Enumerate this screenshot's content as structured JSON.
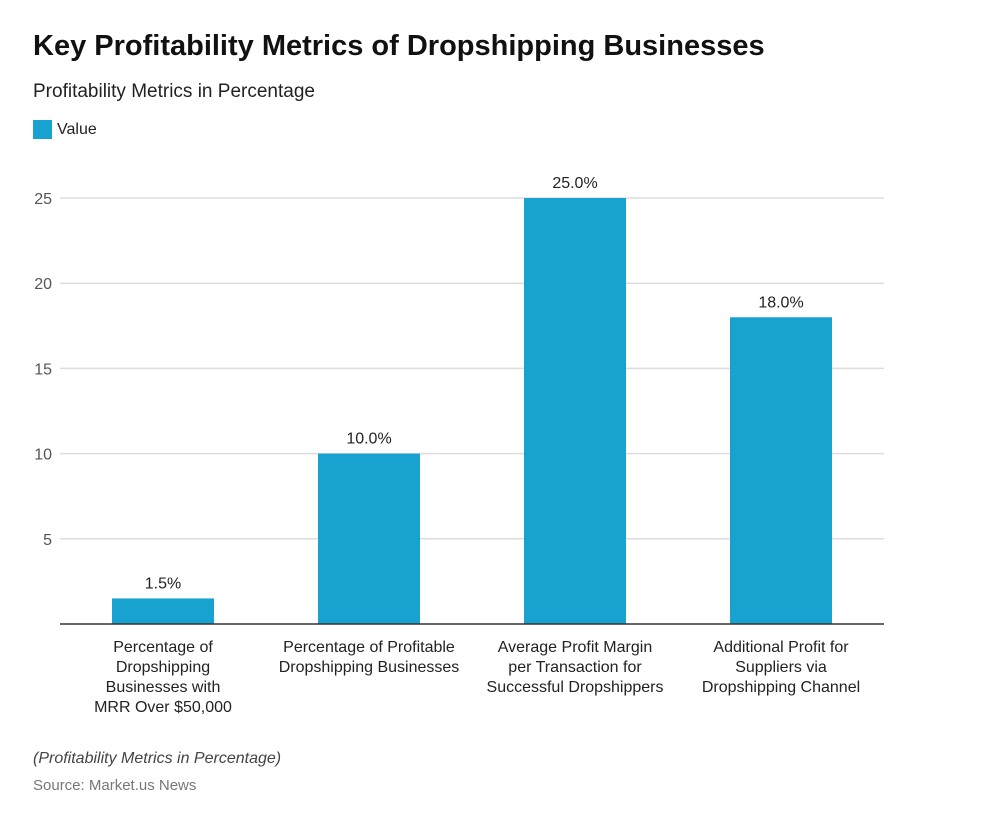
{
  "title": "Key Profitability Metrics of Dropshipping Businesses",
  "subtitle": "Profitability Metrics in Percentage",
  "footnote": "(Profitability Metrics in Percentage)",
  "source": "Source: Market.us News",
  "colors": {
    "bar": "#17a2cf",
    "grid": "#dddddd",
    "axis": "#333333"
  },
  "chart_data": {
    "type": "bar",
    "categories": [
      "Percentage of Dropshipping Businesses with MRR Over $50,000",
      "Percentage of Profitable Dropshipping Businesses",
      "Average Profit Margin per Transaction for Successful Dropshippers",
      "Additional Profit for Suppliers via Dropshipping Channel"
    ],
    "series": [
      {
        "name": "Value",
        "values": [
          1.5,
          10.0,
          25.0,
          18.0
        ]
      }
    ],
    "data_labels": [
      "1.5%",
      "10.0%",
      "25.0%",
      "18.0%"
    ],
    "yticks": [
      5,
      10,
      15,
      20,
      25
    ],
    "ylim": [
      0,
      25
    ],
    "grid": true,
    "legend": "top-left",
    "xlabel": "",
    "ylabel": ""
  }
}
